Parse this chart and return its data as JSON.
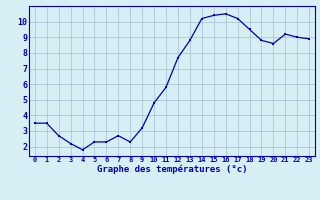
{
  "hours": [
    0,
    1,
    2,
    3,
    4,
    5,
    6,
    7,
    8,
    9,
    10,
    11,
    12,
    13,
    14,
    15,
    16,
    17,
    18,
    19,
    20,
    21,
    22,
    23
  ],
  "temps": [
    3.5,
    3.5,
    2.7,
    2.2,
    1.8,
    2.3,
    2.3,
    2.7,
    2.3,
    3.2,
    4.8,
    5.8,
    7.7,
    8.8,
    10.2,
    10.4,
    10.5,
    10.2,
    9.5,
    8.8,
    8.6,
    9.2,
    9.0,
    8.9
  ],
  "xlabel": "Graphe des températures (°c)",
  "ylim": [
    1.4,
    11.0
  ],
  "xlim": [
    -0.5,
    23.5
  ],
  "yticks": [
    2,
    3,
    4,
    5,
    6,
    7,
    8,
    9,
    10
  ],
  "xtick_labels": [
    "0",
    "1",
    "2",
    "3",
    "4",
    "5",
    "6",
    "7",
    "8",
    "9",
    "10",
    "11",
    "12",
    "13",
    "14",
    "15",
    "16",
    "17",
    "18",
    "19",
    "20",
    "21",
    "22",
    "23"
  ],
  "line_color": "#0000bb",
  "marker_color": "#0000bb",
  "bg_color": "#d8eef5",
  "grid_color": "#aac8d8",
  "tick_color": "#0000bb",
  "xlabel_color": "#0000bb"
}
